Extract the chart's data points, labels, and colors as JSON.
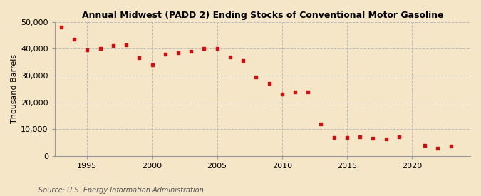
{
  "title": "Annual Midwest (PADD 2) Ending Stocks of Conventional Motor Gasoline",
  "ylabel": "Thousand Barrels",
  "source": "Source: U.S. Energy Information Administration",
  "background_color": "#f5e6c8",
  "marker_color": "#cc1111",
  "ylim": [
    0,
    50000
  ],
  "yticks": [
    0,
    10000,
    20000,
    30000,
    40000,
    50000
  ],
  "xticks": [
    1995,
    2000,
    2005,
    2010,
    2015,
    2020
  ],
  "xlim": [
    1992.5,
    2024.5
  ],
  "years": [
    1993,
    1994,
    1995,
    1996,
    1997,
    1998,
    1999,
    2000,
    2001,
    2002,
    2003,
    2004,
    2005,
    2006,
    2007,
    2008,
    2009,
    2010,
    2011,
    2012,
    2013,
    2014,
    2015,
    2016,
    2017,
    2018,
    2019,
    2021,
    2022,
    2023
  ],
  "values": [
    48000,
    43500,
    39500,
    40000,
    41000,
    41500,
    36500,
    34000,
    38000,
    38500,
    39000,
    40000,
    40000,
    37000,
    35500,
    29500,
    27000,
    23000,
    24000,
    23800,
    12000,
    7000,
    7000,
    7200,
    6500,
    6300,
    7200,
    4000,
    3000,
    3800
  ]
}
